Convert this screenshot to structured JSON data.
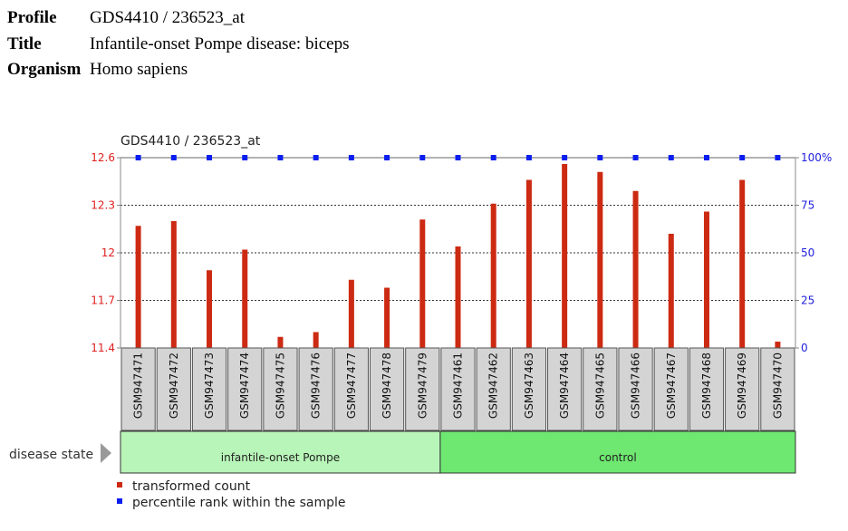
{
  "meta": {
    "profile_label": "Profile",
    "profile_value": "GDS4410 / 236523_at",
    "title_label": "Title",
    "title_value": "Infantile-onset Pompe disease: biceps",
    "organism_label": "Organism",
    "organism_value": "Homo sapiens"
  },
  "chart_data": {
    "type": "bar",
    "title": "GDS4410 / 236523_at",
    "categories": [
      "GSM947471",
      "GSM947472",
      "GSM947473",
      "GSM947474",
      "GSM947475",
      "GSM947476",
      "GSM947477",
      "GSM947478",
      "GSM947479",
      "GSM947461",
      "GSM947462",
      "GSM947463",
      "GSM947464",
      "GSM947465",
      "GSM947466",
      "GSM947467",
      "GSM947468",
      "GSM947469",
      "GSM947470"
    ],
    "series": [
      {
        "name": "transformed count",
        "color": "#cc2a12",
        "axis": "left",
        "values": [
          12.17,
          12.2,
          11.89,
          12.02,
          11.47,
          11.5,
          11.83,
          11.78,
          12.21,
          12.04,
          12.31,
          12.46,
          12.56,
          12.51,
          12.39,
          12.12,
          12.26,
          12.46,
          11.44
        ]
      },
      {
        "name": "percentile rank within the sample",
        "color": "#0b1ef0",
        "axis": "right",
        "values": [
          100,
          100,
          100,
          100,
          100,
          100,
          100,
          100,
          100,
          100,
          100,
          100,
          100,
          100,
          100,
          100,
          100,
          100,
          100
        ]
      }
    ],
    "y_left": {
      "min": 11.4,
      "max": 12.6,
      "ticks": [
        "11.4",
        "11.7",
        "12",
        "12.3",
        "12.6"
      ],
      "color": "#e02020"
    },
    "y_right": {
      "min": 0,
      "max": 100,
      "ticks": [
        "0",
        "25",
        "50",
        "75",
        "100%"
      ],
      "color": "#2020e0"
    },
    "grid": "dotted",
    "groups": {
      "label": "disease state",
      "items": [
        {
          "name": "infantile-onset Pompe",
          "count": 9,
          "color": "#b8f5b8"
        },
        {
          "name": "control",
          "count": 10,
          "color": "#6ee870"
        }
      ]
    },
    "legend": [
      {
        "label": "transformed count",
        "color": "#cc2a12"
      },
      {
        "label": "percentile rank within the sample",
        "color": "#0b1ef0"
      }
    ]
  }
}
